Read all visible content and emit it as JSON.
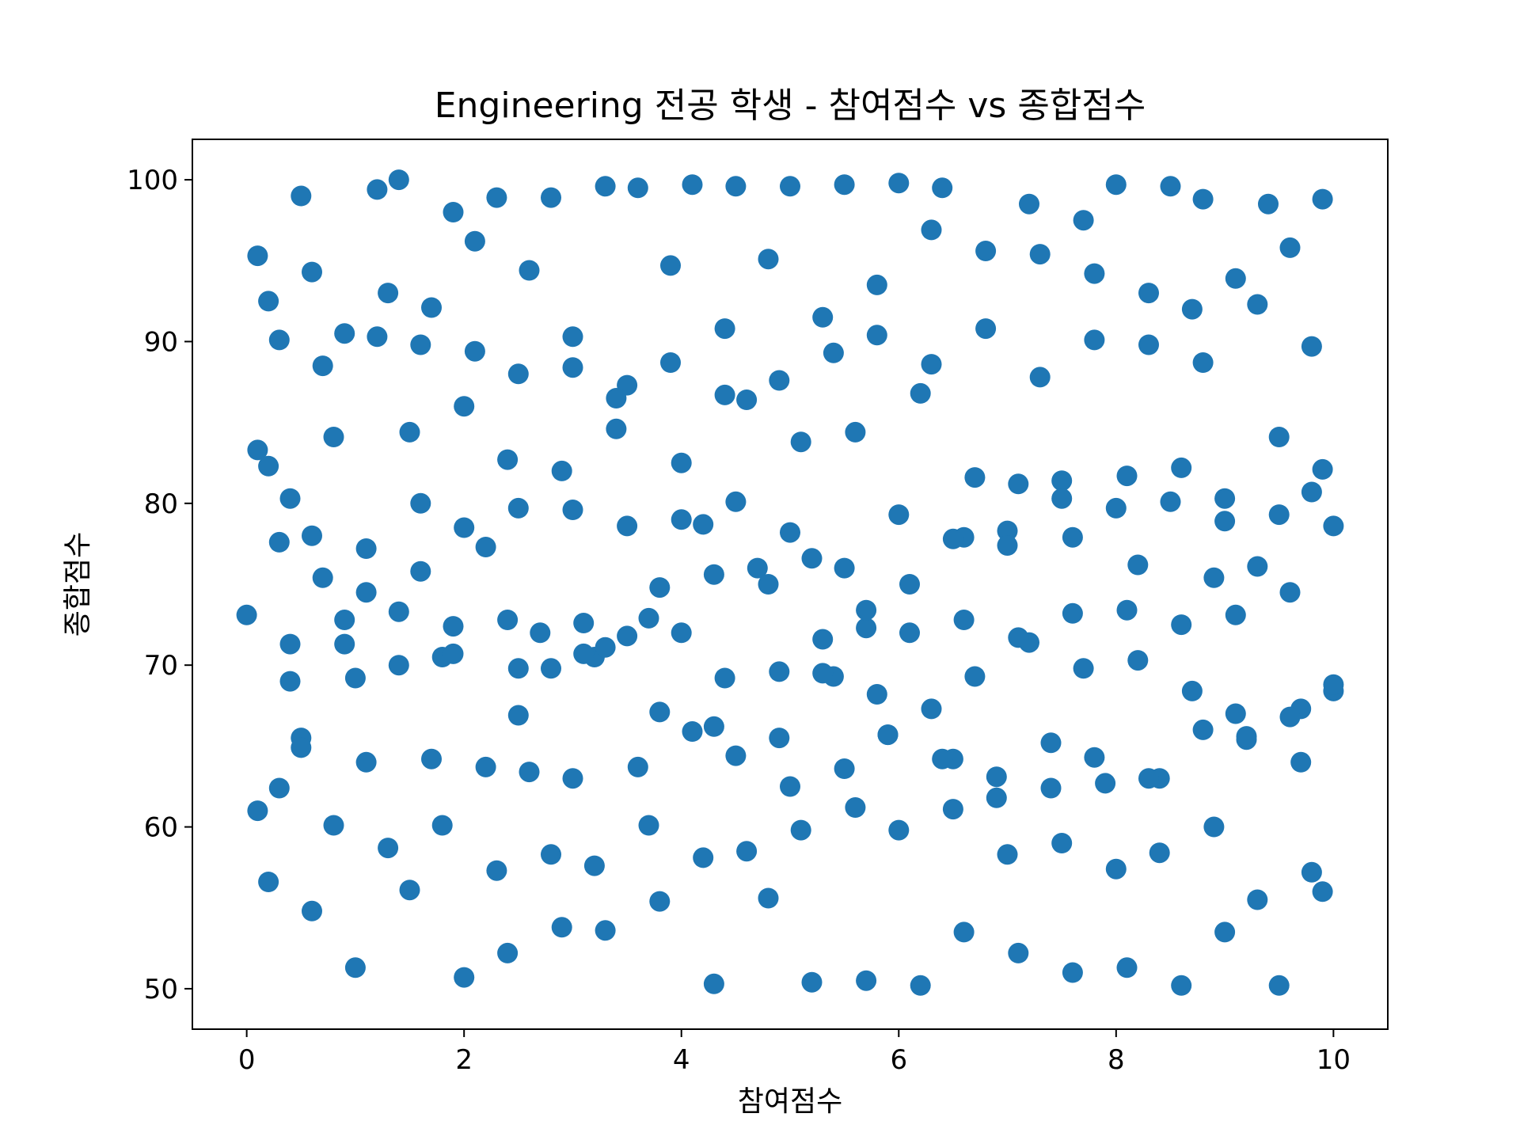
{
  "chart_data": {
    "type": "scatter",
    "title": "Engineering 전공 학생 - 참여점수 vs 종합점수",
    "xlabel": "참여점수",
    "ylabel": "종합점수",
    "xlim": [
      -0.5,
      10.5
    ],
    "ylim": [
      47.5,
      102.5
    ],
    "xticks": [
      0,
      2,
      4,
      6,
      8,
      10
    ],
    "yticks": [
      50,
      60,
      70,
      80,
      90,
      100
    ],
    "grid": false,
    "legend": "none",
    "marker_color": "#1f77b4",
    "series": [
      {
        "x": [
          0.1,
          0.5,
          1.2,
          1.4,
          1.9,
          2.3,
          2.8,
          3.3,
          3.6,
          4.1,
          4.5,
          5.0,
          5.5,
          6.0,
          6.4,
          7.2,
          7.7,
          8.0,
          8.5,
          8.8,
          9.4,
          9.9,
          0.2,
          0.6,
          0.9,
          1.3,
          1.7,
          2.1,
          2.6,
          3.0,
          3.5,
          3.9,
          4.4,
          4.8,
          5.3,
          5.8,
          6.3,
          6.8,
          7.3,
          7.8,
          8.3,
          8.7,
          9.1,
          9.6,
          0.1,
          0.4,
          0.8,
          1.5,
          2.0,
          2.4,
          2.9,
          3.4,
          4.0,
          4.6,
          5.1,
          5.6,
          6.2,
          6.7,
          7.1,
          7.5,
          8.1,
          8.6,
          9.0,
          9.5,
          9.9,
          0.3,
          0.7,
          1.1,
          1.6,
          2.2,
          2.7,
          3.1,
          3.7,
          4.2,
          4.7,
          5.2,
          5.7,
          6.1,
          6.6,
          7.0,
          7.6,
          8.2,
          8.9,
          9.3,
          9.8,
          0.0,
          0.5,
          1.0,
          1.8,
          2.5,
          3.2,
          3.8,
          4.3,
          4.9,
          5.4,
          5.9,
          6.5,
          6.9,
          7.4,
          7.9,
          8.4,
          9.2,
          9.7,
          10.0
        ],
        "y": [
          95.3,
          99.0,
          99.4,
          100.0,
          98.0,
          98.9,
          98.9,
          99.6,
          99.5,
          99.7,
          99.6,
          99.6,
          99.7,
          99.8,
          99.5,
          98.5,
          97.5,
          99.7,
          99.6,
          98.8,
          98.5,
          98.8,
          92.5,
          94.3,
          90.5,
          93.0,
          92.1,
          96.2,
          94.4,
          90.3,
          87.3,
          94.7,
          90.8,
          95.1,
          91.5,
          93.5,
          96.9,
          95.6,
          95.4,
          94.2,
          93.0,
          92.0,
          93.9,
          95.8,
          83.3,
          80.3,
          84.1,
          84.4,
          86.0,
          82.7,
          82.0,
          84.6,
          82.5,
          86.4,
          83.8,
          84.4,
          86.8,
          81.6,
          81.2,
          81.4,
          81.7,
          82.2,
          80.3,
          84.1,
          82.1,
          77.6,
          75.4,
          74.5,
          75.8,
          77.3,
          72.0,
          72.6,
          72.9,
          78.7,
          76.0,
          76.6,
          72.3,
          75.0,
          77.9,
          78.3,
          77.9,
          76.2,
          75.4,
          76.1,
          80.7,
          73.1,
          65.5,
          69.2,
          70.5,
          66.9,
          70.5,
          67.1,
          66.2,
          65.5,
          69.3,
          65.7,
          64.2,
          61.8,
          62.4,
          62.7,
          63.0,
          65.4,
          67.3,
          68.4
        ]
      },
      {
        "x": [
          0.2,
          0.6,
          1.0,
          1.5,
          2.0,
          2.4,
          2.9,
          3.3,
          3.8,
          4.3,
          4.8,
          5.2,
          5.7,
          6.2,
          6.6,
          7.1,
          7.6,
          8.1,
          8.6,
          9.0,
          9.5,
          9.9,
          0.3,
          0.8,
          1.3,
          1.8,
          2.3,
          2.8,
          3.2,
          3.7,
          4.2,
          4.6,
          5.1,
          5.6,
          6.0,
          6.5,
          7.0,
          7.5,
          8.0,
          8.4,
          8.9,
          9.3,
          9.8,
          0.1,
          0.5,
          1.1,
          1.7,
          2.2,
          2.6,
          3.0,
          3.6,
          4.1,
          4.5,
          5.0,
          5.5,
          5.9,
          6.4,
          6.9,
          7.4,
          7.8,
          8.3,
          8.8,
          9.2,
          9.7,
          0.4,
          0.9,
          1.4,
          1.9,
          2.5,
          3.1,
          3.5,
          4.0,
          4.4,
          4.9,
          5.3,
          5.8,
          6.3,
          6.7,
          7.2,
          7.7,
          8.2,
          8.7,
          9.1,
          9.6,
          10.0
        ],
        "y": [
          56.6,
          54.8,
          51.3,
          56.1,
          50.7,
          52.2,
          53.8,
          53.6,
          55.4,
          50.3,
          55.6,
          50.4,
          50.5,
          50.2,
          53.5,
          52.2,
          51.0,
          51.3,
          50.2,
          53.5,
          50.2,
          56.0,
          62.4,
          60.1,
          58.7,
          60.1,
          57.3,
          58.3,
          57.6,
          60.1,
          58.1,
          58.5,
          59.8,
          61.2,
          59.8,
          61.1,
          58.3,
          59.0,
          57.4,
          58.4,
          60.0,
          55.5,
          57.2,
          61.0,
          64.9,
          64.0,
          64.2,
          63.7,
          63.4,
          63.0,
          63.7,
          65.9,
          64.4,
          62.5,
          63.6,
          65.7,
          64.2,
          63.1,
          65.2,
          64.3,
          63.0,
          66.0,
          65.6,
          64.0,
          69.0,
          71.3,
          70.0,
          70.7,
          69.8,
          70.7,
          71.8,
          72.0,
          69.2,
          69.6,
          69.5,
          68.2,
          67.3,
          69.3,
          71.4,
          69.8,
          70.3,
          68.4,
          67.0,
          66.8,
          68.8
        ]
      },
      {
        "x": [
          0.3,
          0.7,
          1.2,
          1.6,
          2.1,
          2.5,
          3.0,
          3.4,
          3.9,
          4.4,
          4.9,
          5.4,
          5.8,
          6.3,
          6.8,
          7.3,
          7.8,
          8.3,
          8.8,
          9.3,
          9.8,
          0.2,
          0.6,
          1.1,
          1.6,
          2.0,
          2.5,
          3.0,
          3.5,
          4.0,
          4.5,
          5.0,
          5.5,
          6.0,
          6.5,
          7.0,
          7.5,
          8.0,
          8.5,
          9.0,
          9.5,
          10.0,
          0.4,
          0.9,
          1.4,
          1.9,
          2.4,
          2.8,
          3.3,
          3.8,
          4.3,
          4.8,
          5.3,
          5.7,
          6.1,
          6.6,
          7.1,
          7.6,
          8.1,
          8.6,
          9.1,
          9.6
        ],
        "y": [
          90.1,
          88.5,
          90.3,
          89.8,
          89.4,
          88.0,
          88.4,
          86.5,
          88.7,
          86.7,
          87.6,
          89.3,
          90.4,
          88.6,
          90.8,
          87.8,
          90.1,
          89.8,
          88.7,
          92.3,
          89.7,
          82.3,
          78.0,
          77.2,
          80.0,
          78.5,
          79.7,
          79.6,
          78.6,
          79.0,
          80.1,
          78.2,
          76.0,
          79.3,
          77.8,
          77.4,
          80.3,
          79.7,
          80.1,
          78.9,
          79.3,
          78.6,
          71.3,
          72.8,
          73.3,
          72.4,
          72.8,
          69.8,
          71.1,
          74.8,
          75.6,
          75.0,
          71.6,
          73.4,
          72.0,
          72.8,
          71.7,
          73.2,
          73.4,
          72.5,
          73.1,
          74.5
        ]
      }
    ]
  }
}
